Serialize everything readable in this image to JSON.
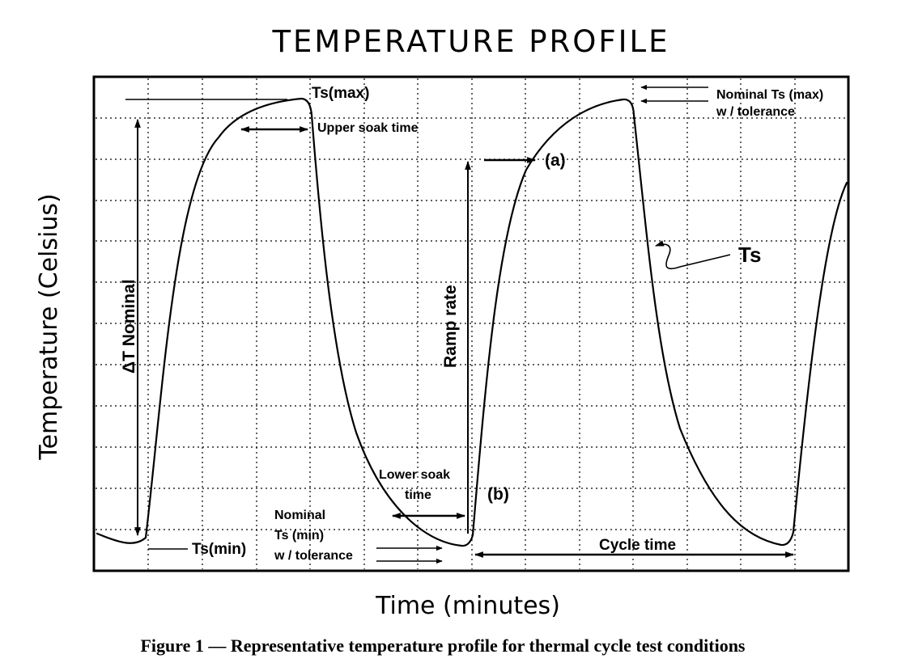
{
  "title": "TEMPERATURE PROFILE",
  "x_axis_label": "Time (minutes)",
  "y_axis_label": "Temperature (Celsius)",
  "caption": "Figure 1 — Representative temperature profile for thermal cycle test conditions",
  "labels": {
    "ts_max": "Ts(max)",
    "upper_soak": "Upper soak time",
    "nominal_max_line1": "Nominal Ts (max)",
    "nominal_max_line2": "w / tolerance",
    "point_a": "(a)",
    "ts": "Ts",
    "ramp_rate": "Ramp rate",
    "delta_t": "ΔT Nominal",
    "lower_soak_line1": "Lower soak",
    "lower_soak_line2": "time",
    "point_b": "(b)",
    "nominal_min_line1": "Nominal",
    "nominal_min_line2": "Ts (min)",
    "nominal_min_line3": "w / tolerance",
    "ts_min": "Ts(min)",
    "cycle_time": "Cycle time"
  },
  "colors": {
    "ink": "#000000",
    "background": "#ffffff",
    "watermark": "#c8c8c8"
  }
}
